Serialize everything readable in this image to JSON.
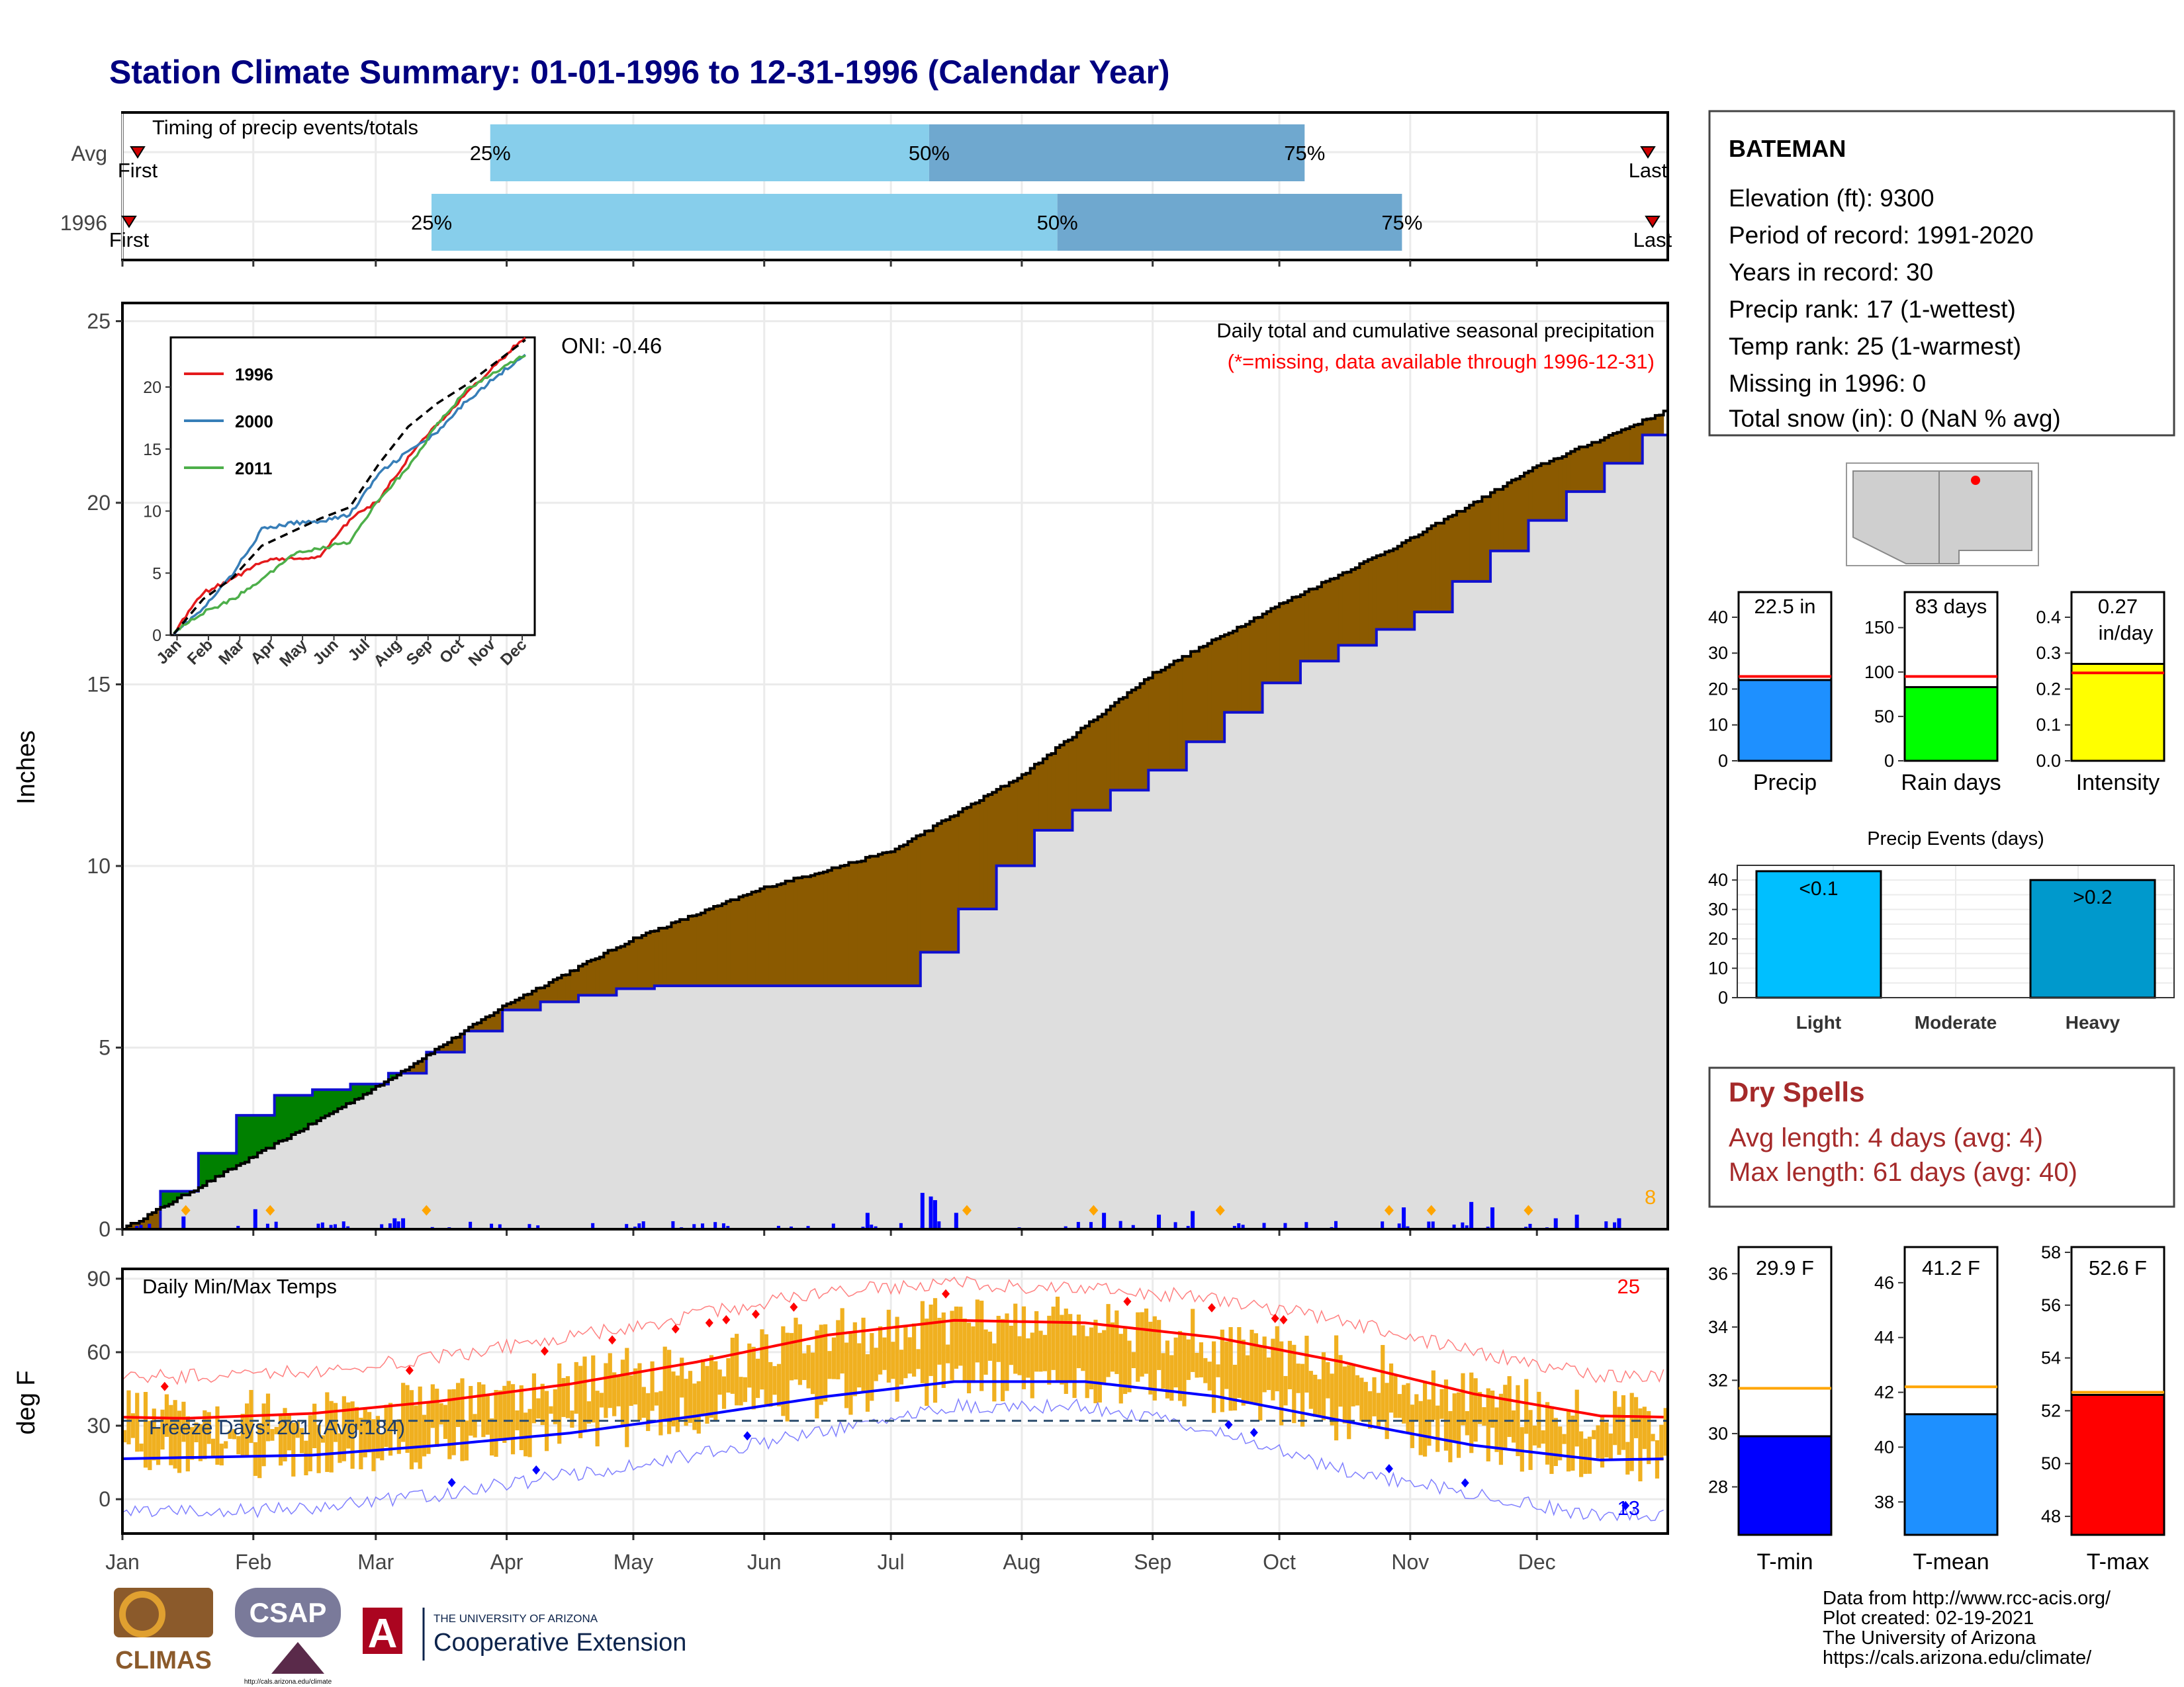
{
  "title": "Station Climate Summary: 01-01-1996 to 12-31-1996 (Calendar Year)",
  "months": [
    "Jan",
    "Feb",
    "Mar",
    "Apr",
    "May",
    "Jun",
    "Jul",
    "Aug",
    "Sep",
    "Oct",
    "Nov",
    "Dec"
  ],
  "colors": {
    "title": "#000080",
    "obs_precip": "#8B5A00",
    "surplus": "#008000",
    "avg_precip": "#1010D0",
    "area_fill": "#DEDEDE",
    "bar_light": "#87CEEB",
    "bar_dark": "#6FA8CF",
    "tmax": "#FF0000",
    "tmin": "#0000FF",
    "temp_bar": "#F0B020",
    "dry_spells": "#A52A2A",
    "orange": "#FFA500"
  },
  "timing": {
    "label": "Timing of precip events/totals",
    "rows": [
      {
        "name": "Avg",
        "first_label": "First",
        "last_label": "Last",
        "q25": 0.238,
        "q50": 0.522,
        "q75": 0.765,
        "labels": [
          "25%",
          "50%",
          "75%"
        ]
      },
      {
        "name": "1996",
        "first_label": "First",
        "last_label": "Last",
        "q25": 0.2,
        "q50": 0.605,
        "q75": 0.828,
        "labels": [
          "25%",
          "50%",
          "75%"
        ]
      }
    ]
  },
  "precip_panel": {
    "ylabel": "Inches",
    "y_ticks": [
      0,
      5,
      10,
      15,
      20,
      25
    ],
    "title": "Daily total and cumulative seasonal precipitation",
    "subtitle": "(*=missing, data available through 1996-12-31)",
    "oni": "ONI: -0.46",
    "count_label": "8"
  },
  "inset": {
    "y_ticks": [
      0,
      5,
      10,
      15,
      20
    ],
    "x_ticks": [
      "Jan",
      "Feb",
      "Mar",
      "Apr",
      "May",
      "Jun",
      "Jul",
      "Aug",
      "Sep",
      "Oct",
      "Nov",
      "Dec"
    ],
    "legend": [
      {
        "name": "1996",
        "color": "#E41A1C"
      },
      {
        "name": "2000",
        "color": "#377EB8"
      },
      {
        "name": "2011",
        "color": "#4DAF4A"
      }
    ]
  },
  "temp_panel": {
    "ylabel": "deg F",
    "title": "Daily Min/Max Temps",
    "freeze_label": "Freeze Days: 201 (Avg:184)",
    "count_max": "25",
    "count_min": "13",
    "y_ticks": [
      0,
      30,
      60,
      90
    ]
  },
  "station_box": {
    "name": "BATEMAN",
    "lines": [
      "Elevation (ft): 9300",
      "Period of record: 1991-2020",
      "Years in record: 30",
      "Precip rank: 17 (1-wettest)",
      "Temp rank: 25 (1-warmest)",
      "Missing in 1996: 0",
      "Total snow (in): 0 (NaN % avg)"
    ]
  },
  "summary_bars": [
    {
      "label": "Precip",
      "value": 22.5,
      "avg": 23.5,
      "value_text": "22.5 in",
      "ymin": 0,
      "ymax": 47,
      "ticks": [
        0,
        10,
        20,
        30,
        40
      ],
      "color": "#1E90FF",
      "tick_fmt": "int"
    },
    {
      "label": "Rain days",
      "value": 83,
      "avg": 95,
      "value_text": "83 days",
      "ymin": 0,
      "ymax": 190,
      "ticks": [
        0,
        50,
        100,
        150
      ],
      "color": "#00FF00",
      "tick_fmt": "int"
    },
    {
      "label": "Intensity",
      "value": 0.27,
      "avg": 0.245,
      "value_text": "0.27",
      "value_text2": "in/day",
      "ymin": 0,
      "ymax": 0.47,
      "ticks": [
        0.0,
        0.1,
        0.2,
        0.3,
        0.4
      ],
      "color": "#FFFF00",
      "tick_fmt": "1dp"
    }
  ],
  "precip_events": {
    "title": "Precip Events (days)",
    "ticks": [
      0,
      10,
      20,
      30,
      40
    ],
    "bars": [
      {
        "label": "Light",
        "value": 43,
        "text": "<0.1",
        "color": "#00BFFF"
      },
      {
        "label": "Moderate",
        "value": 0,
        "text": "",
        "color": "#00BFFF"
      },
      {
        "label": "Heavy",
        "value": 40,
        "text": ">0.2",
        "color": "#0099CC"
      }
    ]
  },
  "dry_spells": {
    "title": "Dry Spells",
    "lines": [
      "Avg length: 4 days (avg: 4)",
      "Max length: 61 days (avg: 40)"
    ]
  },
  "temp_bars": [
    {
      "label": "T-min",
      "value": 29.9,
      "avg": 31.7,
      "value_text": "29.9 F",
      "ymin": 26.2,
      "ymax": 37.0,
      "ticks": [
        28,
        30,
        32,
        34,
        36
      ],
      "color": "#0000FF"
    },
    {
      "label": "T-mean",
      "value": 41.2,
      "avg": 42.2,
      "value_text": "41.2 F",
      "ymin": 36.8,
      "ymax": 47.3,
      "ticks": [
        38,
        40,
        42,
        44,
        46
      ],
      "color": "#1E90FF"
    },
    {
      "label": "T-max",
      "value": 52.6,
      "avg": 52.7,
      "value_text": "52.6 F",
      "ymin": 47.3,
      "ymax": 58.2,
      "ticks": [
        48,
        50,
        52,
        54,
        56,
        58
      ],
      "color": "#FF0000"
    }
  ],
  "footer": {
    "lines": [
      "Data from http://www.rcc-acis.org/",
      "Plot created: 02-19-2021",
      "The University of Arizona",
      "https://cals.arizona.edu/climate/"
    ],
    "logos": {
      "climas": "CLIMAS",
      "csap": "CSAP",
      "csap_url": "http://cals.arizona.edu/climate",
      "ua_small": "THE UNIVERSITY OF ARIZONA",
      "ua_big": "Cooperative Extension",
      "ua_letter": "A"
    }
  },
  "chart_data": [
    {
      "type": "area",
      "title": "Daily total and cumulative seasonal precipitation",
      "ylabel": "Inches",
      "ylim": [
        0,
        25.5
      ],
      "x": [
        "1996-01-01",
        "1996-02-01",
        "1996-03-01",
        "1996-04-01",
        "1996-05-01",
        "1996-06-01",
        "1996-07-01",
        "1996-08-01",
        "1996-09-01",
        "1996-10-01",
        "1996-11-01",
        "1996-12-01",
        "1996-12-31"
      ],
      "series": [
        {
          "name": "1996 cumulative",
          "values": [
            0,
            2.0,
            3.9,
            6.2,
            8.0,
            9.4,
            10.4,
            12.5,
            15.3,
            17.2,
            19.0,
            21.0,
            22.5
          ]
        },
        {
          "name": "Avg cumulative",
          "values": [
            0,
            3.6,
            4.1,
            6.1,
            6.7,
            6.7,
            6.7,
            10.8,
            12.7,
            15.4,
            16.9,
            19.7,
            22.3
          ]
        }
      ],
      "daily_bars": [
        {
          "date": "1996-01-15",
          "value": 0.35
        },
        {
          "date": "1996-02-01",
          "value": 0.55
        },
        {
          "date": "1996-03-05",
          "value": 0.3
        },
        {
          "date": "1996-03-07",
          "value": 0.3
        },
        {
          "date": "1996-06-25",
          "value": 0.45
        },
        {
          "date": "1996-07-08",
          "value": 1.0
        },
        {
          "date": "1996-07-10",
          "value": 0.9
        },
        {
          "date": "1996-07-11",
          "value": 0.8
        },
        {
          "date": "1996-07-16",
          "value": 0.45
        },
        {
          "date": "1996-08-20",
          "value": 0.45
        },
        {
          "date": "1996-09-02",
          "value": 0.4
        },
        {
          "date": "1996-09-10",
          "value": 0.5
        },
        {
          "date": "1996-10-30",
          "value": 0.6
        },
        {
          "date": "1996-11-15",
          "value": 0.75
        },
        {
          "date": "1996-11-20",
          "value": 0.6
        },
        {
          "date": "1996-12-05",
          "value": 0.3
        },
        {
          "date": "1996-12-10",
          "value": 0.4
        },
        {
          "date": "1996-12-20",
          "value": 0.3
        }
      ]
    },
    {
      "type": "line",
      "title": "",
      "x": [
        "Jan",
        "Feb",
        "Mar",
        "Apr",
        "May",
        "Jun",
        "Jul",
        "Aug",
        "Sep",
        "Oct",
        "Nov",
        "Dec"
      ],
      "ylim": [
        0,
        24
      ],
      "series": [
        {
          "name": "1996",
          "values": [
            0.2,
            3.4,
            4.5,
            6.0,
            6.2,
            6.3,
            9.3,
            10.9,
            14.3,
            17.0,
            19.5,
            21.8
          ]
        },
        {
          "name": "2000",
          "values": [
            0.2,
            2.1,
            4.9,
            8.5,
            9.0,
            9.2,
            9.7,
            13.0,
            14.8,
            16.3,
            18.9,
            20.8
          ]
        },
        {
          "name": "2011",
          "values": [
            0.3,
            1.8,
            2.9,
            4.4,
            6.5,
            7.0,
            7.5,
            11.0,
            13.5,
            17.0,
            19.8,
            21.2
          ]
        },
        {
          "name": "Avg",
          "values": [
            0.1,
            2.9,
            4.6,
            7.2,
            8.3,
            9.4,
            10.3,
            13.8,
            16.8,
            18.7,
            20.2,
            22.0
          ]
        }
      ]
    },
    {
      "type": "line",
      "title": "Daily Min/Max Temps",
      "ylabel": "deg F",
      "ylim": [
        -12,
        92
      ],
      "x": [
        "Jan",
        "Feb",
        "Mar",
        "Apr",
        "May",
        "Jun",
        "Jul",
        "Aug",
        "Sep",
        "Oct",
        "Nov",
        "Dec"
      ],
      "series": [
        {
          "name": "Normal max",
          "values": [
            33,
            35,
            40,
            47,
            56,
            67,
            73,
            72,
            66,
            56,
            43,
            34
          ]
        },
        {
          "name": "Normal min",
          "values": [
            17,
            18,
            22,
            27,
            34,
            42,
            48,
            48,
            42,
            32,
            22,
            16
          ]
        },
        {
          "name": "Record max",
          "values": [
            50,
            52,
            58,
            66,
            75,
            85,
            88,
            86,
            82,
            73,
            60,
            50
          ]
        },
        {
          "name": "Record min",
          "values": [
            -5,
            -4,
            2,
            10,
            18,
            28,
            38,
            38,
            28,
            12,
            2,
            -7
          ]
        }
      ],
      "freeze_line": 32
    },
    {
      "type": "bar",
      "title": "",
      "categories": [
        "Precip",
        "Rain days",
        "Intensity"
      ],
      "values": [
        22.5,
        83,
        0.27
      ]
    },
    {
      "type": "bar",
      "title": "Precip Events (days)",
      "categories": [
        "Light",
        "Moderate",
        "Heavy"
      ],
      "values": [
        43,
        0,
        40
      ]
    },
    {
      "type": "bar",
      "title": "",
      "categories": [
        "T-min",
        "T-mean",
        "T-max"
      ],
      "values": [
        29.9,
        41.2,
        52.6
      ]
    }
  ]
}
